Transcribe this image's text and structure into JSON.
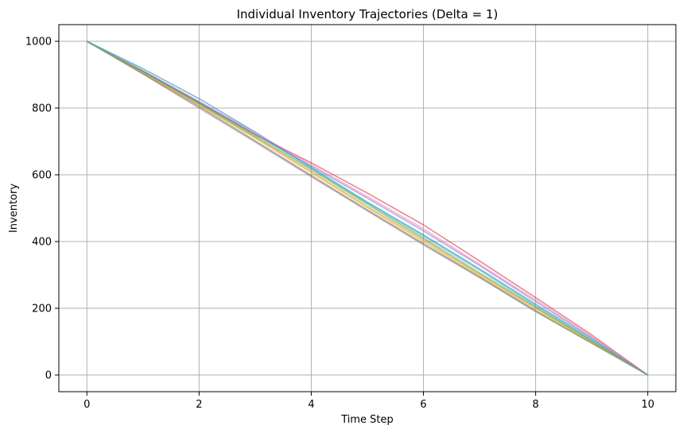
{
  "chart_data": {
    "type": "line",
    "title": "Individual Inventory Trajectories (Delta = 1)",
    "xlabel": "Time Step",
    "ylabel": "Inventory",
    "xlim": [
      -0.5,
      10.5
    ],
    "ylim": [
      -50,
      1050
    ],
    "xticks": [
      0,
      2,
      4,
      6,
      8,
      10
    ],
    "yticks": [
      0,
      200,
      400,
      600,
      800,
      1000
    ],
    "grid": true,
    "legend": "none",
    "x": [
      0,
      1,
      2,
      3,
      4,
      5,
      6,
      7,
      8,
      9,
      10
    ],
    "series": [
      {
        "color": "#1f77b4",
        "values": [
          1000,
          918,
          828,
          728,
          622,
          518,
          420,
          318,
          212,
          108,
          0
        ]
      },
      {
        "color": "#ff7f0e",
        "values": [
          1000,
          905,
          810,
          712,
          610,
          505,
          405,
          302,
          200,
          100,
          0
        ]
      },
      {
        "color": "#2ca02c",
        "values": [
          1000,
          908,
          814,
          716,
          616,
          512,
          410,
          306,
          204,
          102,
          0
        ]
      },
      {
        "color": "#d62728",
        "values": [
          1000,
          910,
          816,
          720,
          636,
          545,
          450,
          342,
          232,
          120,
          0
        ]
      },
      {
        "color": "#9467bd",
        "values": [
          1000,
          910,
          818,
          722,
          626,
          530,
          432,
          328,
          220,
          112,
          0
        ]
      },
      {
        "color": "#8c564b",
        "values": [
          1000,
          903,
          805,
          702,
          598,
          495,
          394,
          294,
          192,
          96,
          0
        ]
      },
      {
        "color": "#e377c2",
        "values": [
          1000,
          912,
          820,
          726,
          630,
          535,
          438,
          332,
          225,
          115,
          0
        ]
      },
      {
        "color": "#7f7f7f",
        "values": [
          1000,
          902,
          800,
          698,
          594,
          492,
          390,
          292,
          190,
          95,
          0
        ]
      },
      {
        "color": "#bcbd22",
        "values": [
          1000,
          906,
          810,
          710,
          606,
          502,
          400,
          298,
          196,
          98,
          0
        ]
      },
      {
        "color": "#17becf",
        "values": [
          1000,
          912,
          818,
          722,
          620,
          516,
          416,
          314,
          208,
          104,
          0
        ]
      }
    ]
  }
}
